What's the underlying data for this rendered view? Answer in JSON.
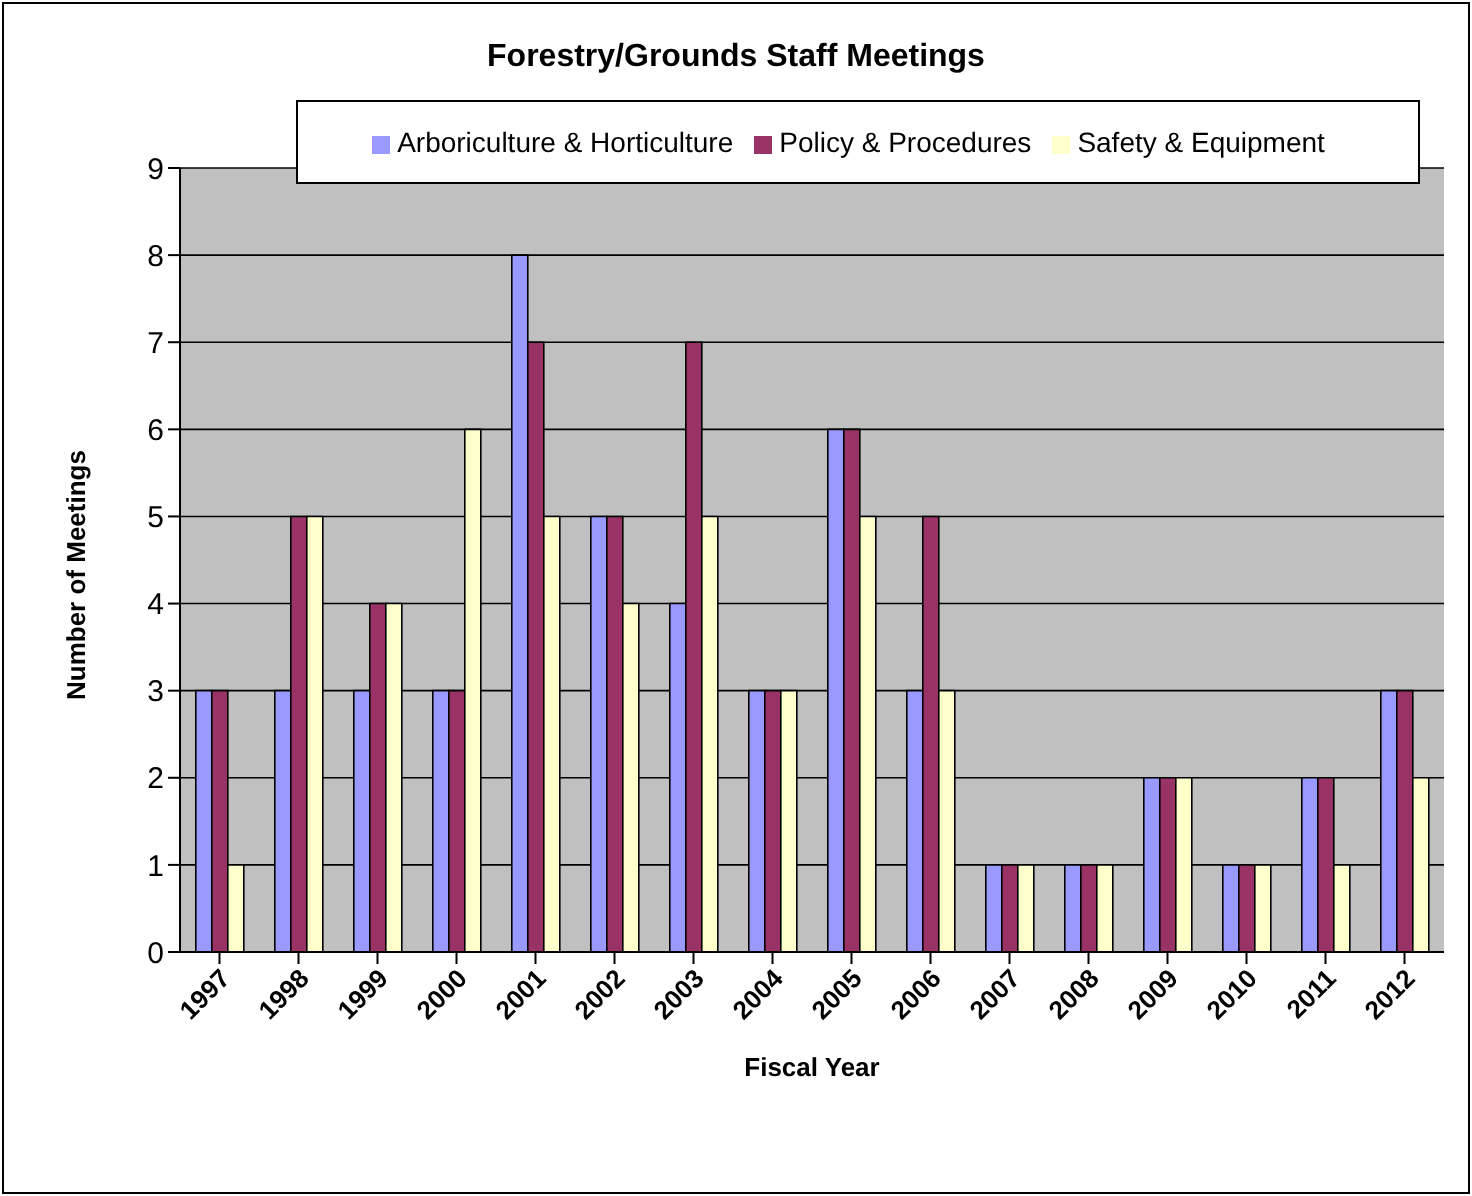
{
  "chart_data": {
    "type": "bar",
    "title": "Forestry/Grounds Staff Meetings",
    "xlabel": "Fiscal Year",
    "ylabel": "Number of Meetings",
    "categories": [
      "1997",
      "1998",
      "1999",
      "2000",
      "2001",
      "2002",
      "2003",
      "2004",
      "2005",
      "2006",
      "2007",
      "2008",
      "2009",
      "2010",
      "2011",
      "2012"
    ],
    "series": [
      {
        "name": "Arboriculture & Horticulture",
        "color": "#9999ff",
        "values": [
          3,
          3,
          3,
          3,
          8,
          5,
          4,
          3,
          6,
          3,
          1,
          1,
          2,
          1,
          2,
          3
        ]
      },
      {
        "name": "Policy & Procedures",
        "color": "#993366",
        "values": [
          3,
          5,
          4,
          3,
          7,
          5,
          7,
          3,
          6,
          5,
          1,
          1,
          2,
          1,
          2,
          3
        ]
      },
      {
        "name": "Safety & Equipment",
        "color": "#ffffcc",
        "values": [
          1,
          5,
          4,
          6,
          5,
          4,
          5,
          3,
          5,
          3,
          1,
          1,
          2,
          1,
          1,
          2
        ]
      }
    ],
    "ylim": [
      0,
      9
    ],
    "yticks": [
      0,
      1,
      2,
      3,
      4,
      5,
      6,
      7,
      8,
      9
    ],
    "grid": "y",
    "legend": "top"
  }
}
